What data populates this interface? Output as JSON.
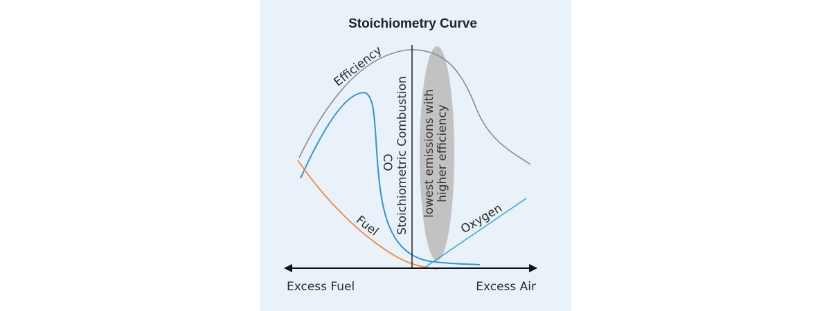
{
  "title": "Stoichiometry Curve",
  "axis": {
    "left_label": "Excess Fuel",
    "right_label": "Excess Air"
  },
  "stoich_line_label": "Stoichiometric Combustion",
  "band_label_line1": "lowest emissions with",
  "band_label_line2": "higher efficiency",
  "curves": {
    "efficiency": {
      "label": "Efficiency",
      "color": "#8c8c8c"
    },
    "co": {
      "label": "CO",
      "color": "#2a95d6"
    },
    "fuel": {
      "label": "Fuel",
      "color": "#f0883c"
    },
    "oxygen": {
      "label": "Oxygen",
      "color": "#3aa8d8"
    }
  },
  "colors": {
    "background": "#e9f1f9",
    "band": "#c2c2c2",
    "axis": "#111111"
  }
}
